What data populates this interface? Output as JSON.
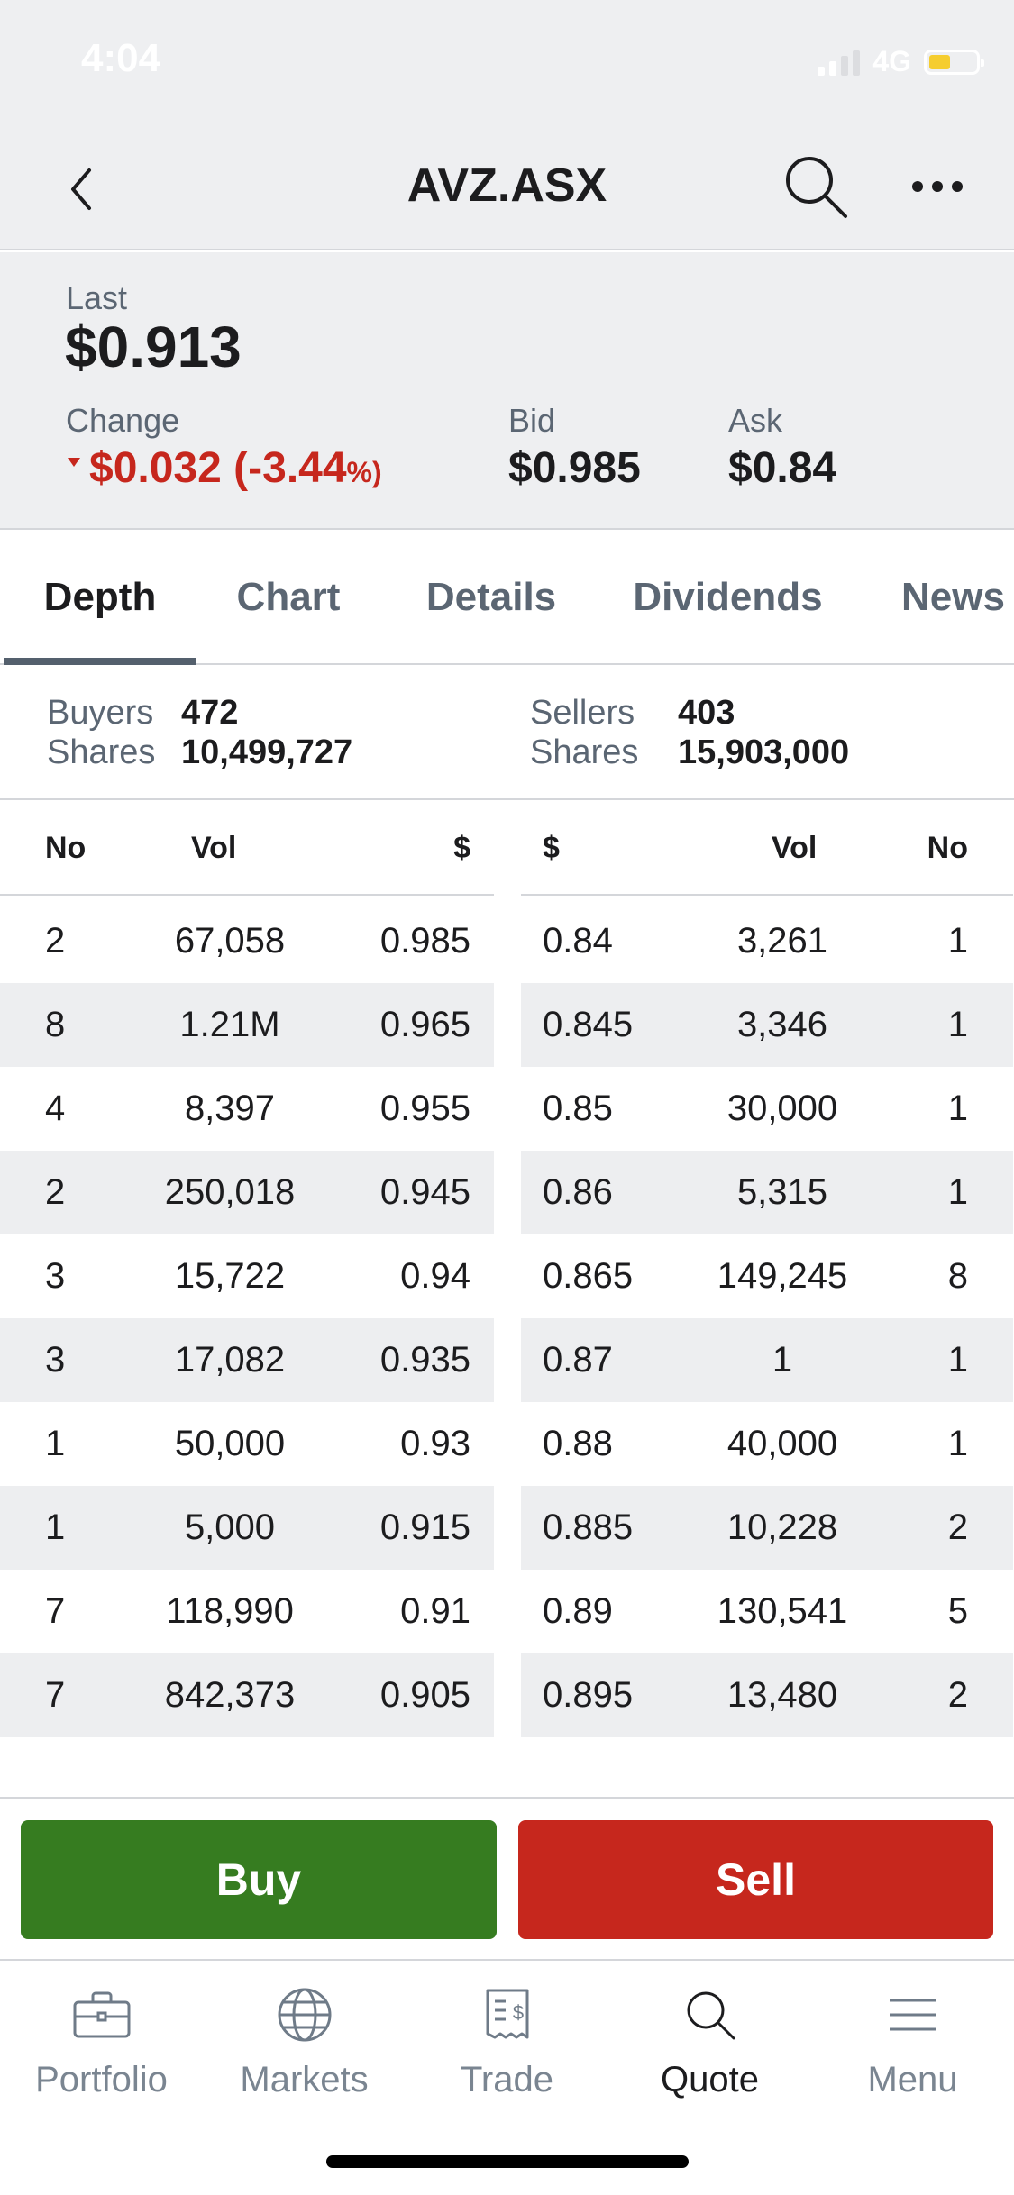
{
  "status_bar": {
    "time": "4:04",
    "network": "4G"
  },
  "nav": {
    "title": "AVZ.ASX"
  },
  "quote": {
    "last_label": "Last",
    "last_value": "$0.913",
    "change_label": "Change",
    "change_value": "$0.032 (-3.44",
    "change_pct_symbol": "%)",
    "bid_label": "Bid",
    "bid_value": "$0.985",
    "ask_label": "Ask",
    "ask_value": "$0.84"
  },
  "tabs": [
    {
      "label": "Depth",
      "active": true
    },
    {
      "label": "Chart",
      "active": false
    },
    {
      "label": "Details",
      "active": false
    },
    {
      "label": "Dividends",
      "active": false
    },
    {
      "label": "News",
      "active": false
    }
  ],
  "summary": {
    "buyers_label": "Buyers",
    "buyers_value": "472",
    "buyers_shares_label": "Shares",
    "buyers_shares_value": "10,499,727",
    "sellers_label": "Sellers",
    "sellers_value": "403",
    "sellers_shares_label": "Shares",
    "sellers_shares_value": "15,903,000"
  },
  "depth": {
    "buy_headers": {
      "no": "No",
      "vol": "Vol",
      "price": "$"
    },
    "sell_headers": {
      "price": "$",
      "vol": "Vol",
      "no": "No"
    },
    "buy_rows": [
      {
        "no": "2",
        "vol": "67,058",
        "price": "0.985"
      },
      {
        "no": "8",
        "vol": "1.21M",
        "price": "0.965"
      },
      {
        "no": "4",
        "vol": "8,397",
        "price": "0.955"
      },
      {
        "no": "2",
        "vol": "250,018",
        "price": "0.945"
      },
      {
        "no": "3",
        "vol": "15,722",
        "price": "0.94"
      },
      {
        "no": "3",
        "vol": "17,082",
        "price": "0.935"
      },
      {
        "no": "1",
        "vol": "50,000",
        "price": "0.93"
      },
      {
        "no": "1",
        "vol": "5,000",
        "price": "0.915"
      },
      {
        "no": "7",
        "vol": "118,990",
        "price": "0.91"
      },
      {
        "no": "7",
        "vol": "842,373",
        "price": "0.905"
      }
    ],
    "sell_rows": [
      {
        "price": "0.84",
        "vol": "3,261",
        "no": "1"
      },
      {
        "price": "0.845",
        "vol": "3,346",
        "no": "1"
      },
      {
        "price": "0.85",
        "vol": "30,000",
        "no": "1"
      },
      {
        "price": "0.86",
        "vol": "5,315",
        "no": "1"
      },
      {
        "price": "0.865",
        "vol": "149,245",
        "no": "8"
      },
      {
        "price": "0.87",
        "vol": "1",
        "no": "1"
      },
      {
        "price": "0.88",
        "vol": "40,000",
        "no": "1"
      },
      {
        "price": "0.885",
        "vol": "10,228",
        "no": "2"
      },
      {
        "price": "0.89",
        "vol": "130,541",
        "no": "5"
      },
      {
        "price": "0.895",
        "vol": "13,480",
        "no": "2"
      }
    ]
  },
  "actions": {
    "buy_label": "Buy",
    "sell_label": "Sell"
  },
  "tab_bar": [
    {
      "label": "Portfolio",
      "icon": "briefcase-icon",
      "active": false
    },
    {
      "label": "Markets",
      "icon": "globe-icon",
      "active": false
    },
    {
      "label": "Trade",
      "icon": "receipt-icon",
      "active": false
    },
    {
      "label": "Quote",
      "icon": "search-icon",
      "active": true
    },
    {
      "label": "Menu",
      "icon": "menu-icon",
      "active": false
    }
  ],
  "colors": {
    "buy": "#367c20",
    "sell": "#c6271d",
    "negative": "#c6271d",
    "panel_bg": "#eeeff1"
  }
}
